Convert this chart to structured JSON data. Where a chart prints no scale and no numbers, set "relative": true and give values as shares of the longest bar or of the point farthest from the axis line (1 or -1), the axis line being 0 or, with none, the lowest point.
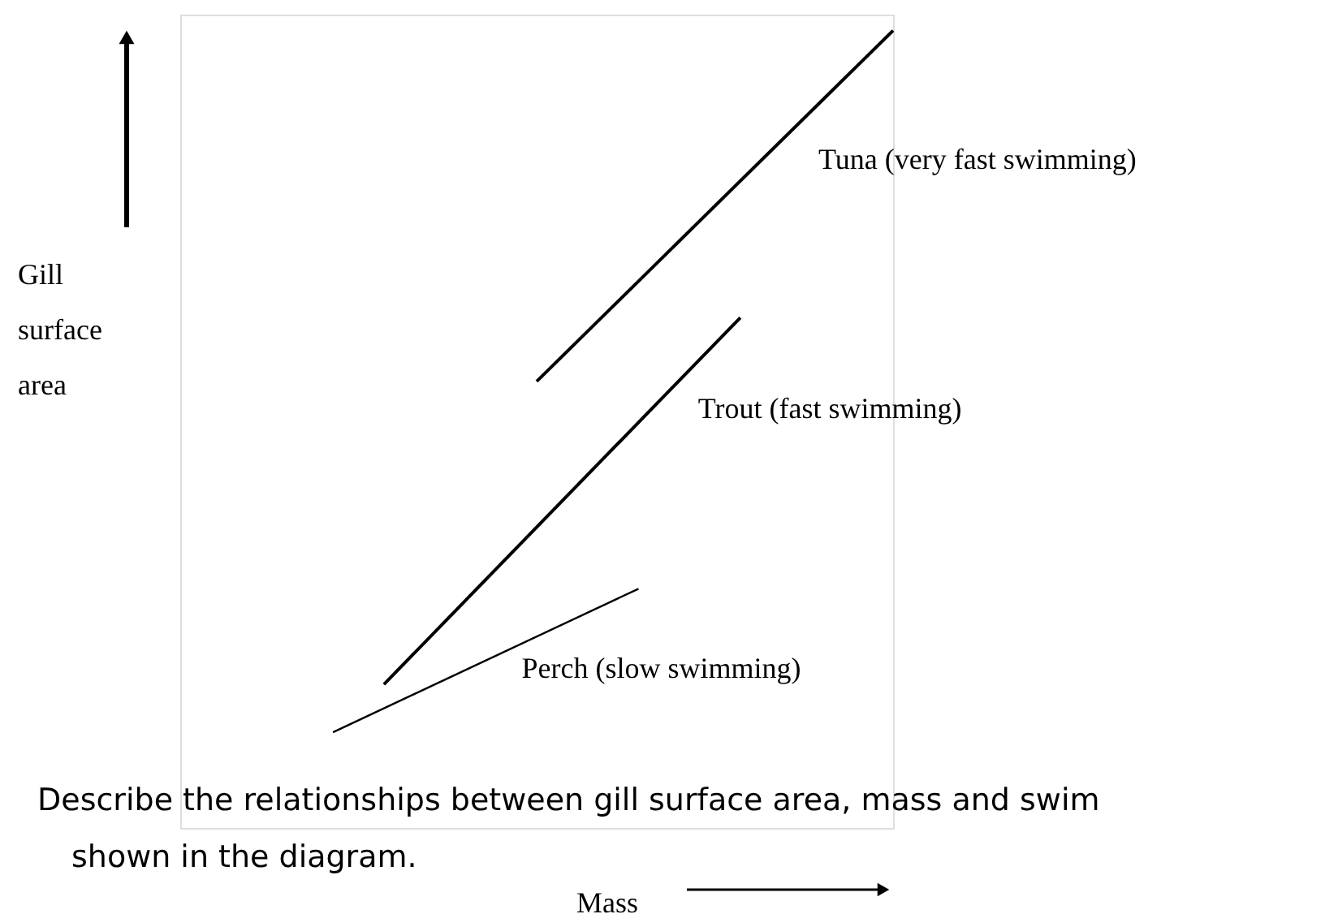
{
  "chart_data": {
    "type": "line",
    "relative": true,
    "xlabel": "Mass",
    "ylabel": "Gill surface area",
    "categories": [
      null,
      null,
      null,
      null,
      null,
      null,
      null,
      null,
      null,
      null,
      null,
      null,
      null,
      null,
      null
    ],
    "ylim": [
      0,
      1.02
    ],
    "line_style": "solid",
    "series": [
      {
        "name": "Tuna (very fast swimming)",
        "color": "#000000",
        "values": [
          null,
          null,
          null,
          null,
          null,
          null,
          null,
          0.56,
          null,
          null,
          null,
          null,
          null,
          null,
          1.0
        ]
      },
      {
        "name": "Trout (fast swimming)",
        "color": "#000000",
        "values": [
          null,
          null,
          null,
          null,
          0.18,
          null,
          null,
          null,
          null,
          null,
          null,
          0.64,
          null,
          null,
          null
        ]
      },
      {
        "name": "Perch (slow swimming)",
        "color": "#000000",
        "values": [
          null,
          null,
          null,
          0.12,
          null,
          null,
          null,
          null,
          null,
          0.3,
          null,
          null,
          null,
          null,
          null
        ]
      }
    ],
    "annotations": [
      "Describe the relationships between gill surface area, mass and swim shown in the diagram."
    ]
  }
}
